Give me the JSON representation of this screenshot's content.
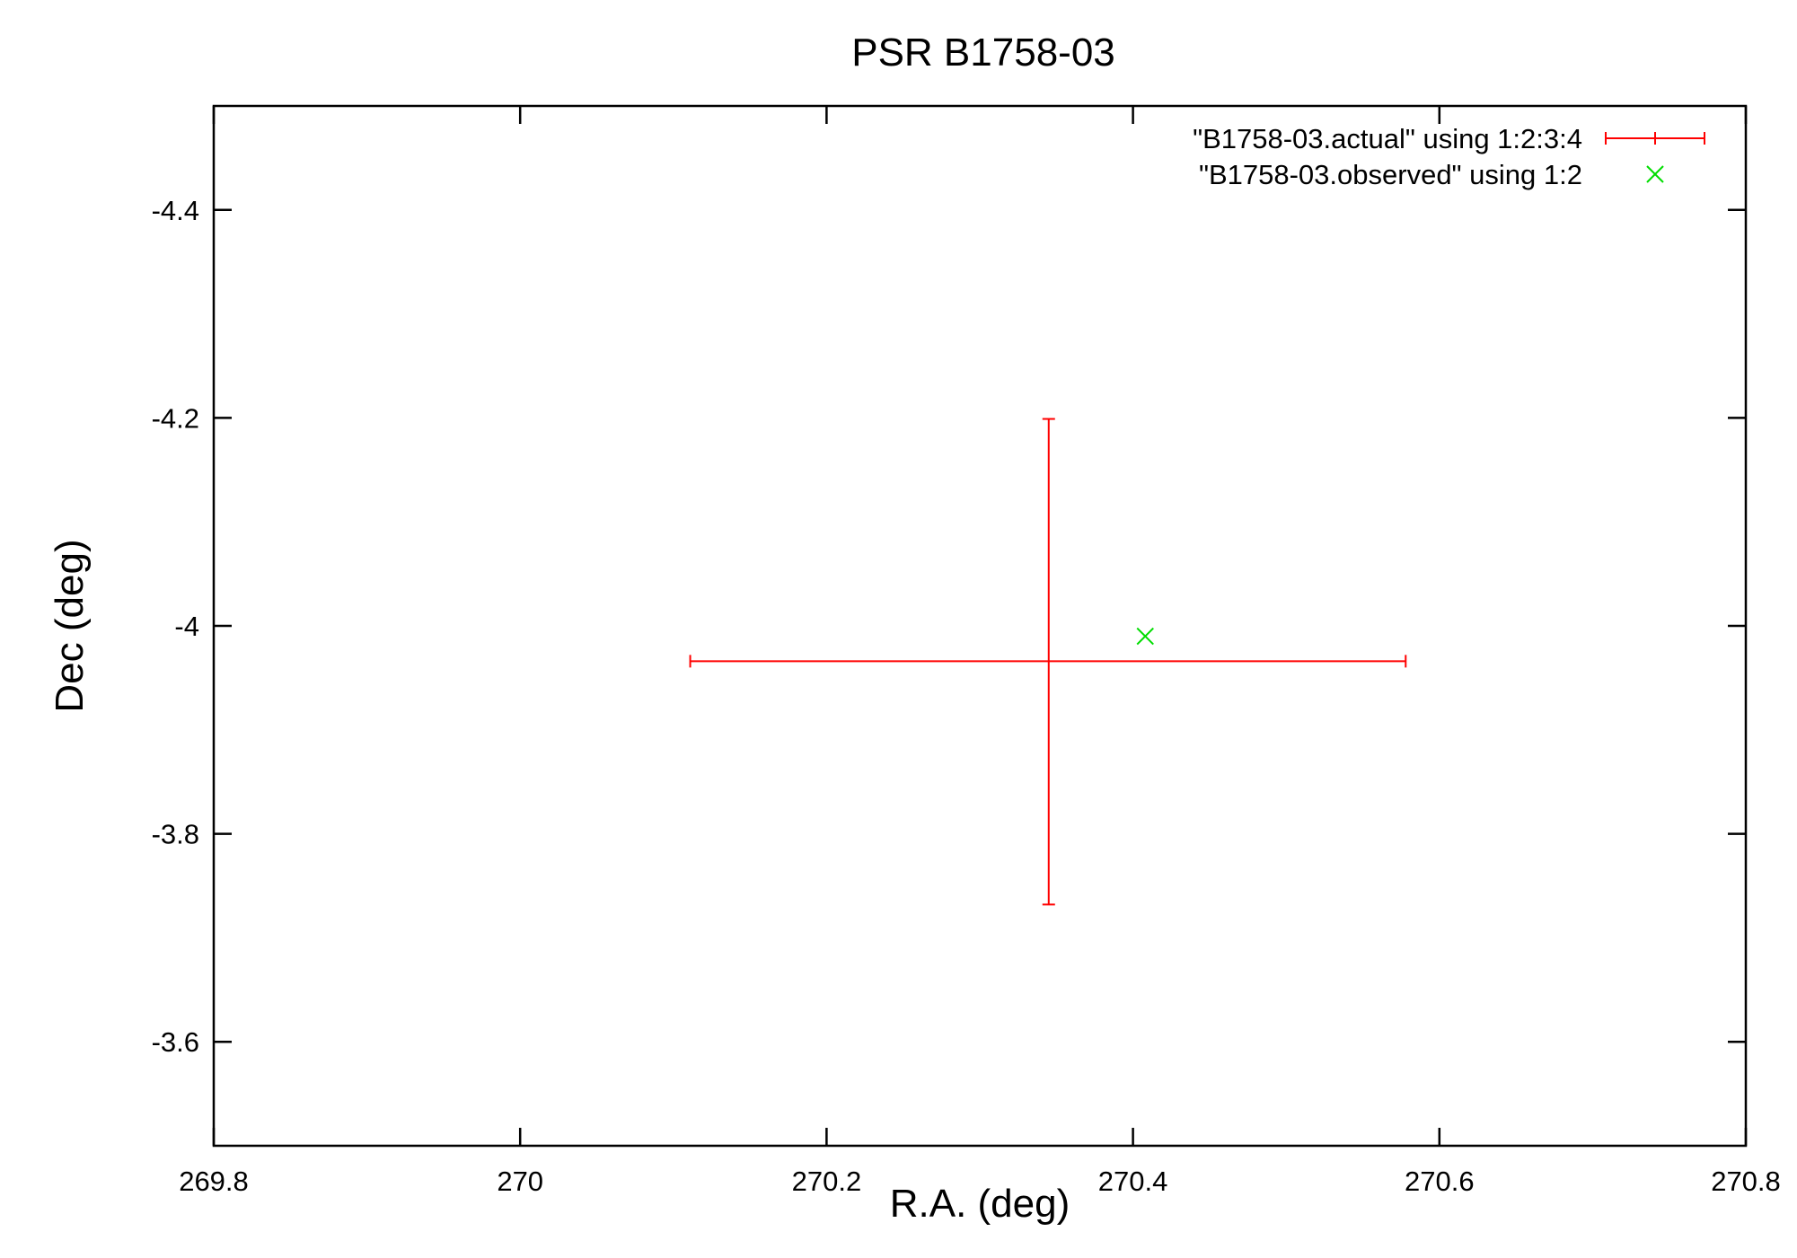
{
  "chart_data": {
    "type": "scatter",
    "title": "PSR B1758-03",
    "xlabel": "R.A. (deg)",
    "ylabel": "Dec (deg)",
    "xlim": [
      269.8,
      270.8
    ],
    "ylim": [
      -4.5,
      -3.5
    ],
    "y_reversed": true,
    "xticks": [
      269.8,
      270.0,
      270.2,
      270.4,
      270.6,
      270.8
    ],
    "xtick_labels": [
      "269.8",
      "270",
      "270.2",
      "270.4",
      "270.6",
      "270.8"
    ],
    "yticks": [
      -4.4,
      -4.2,
      -4.0,
      -3.8,
      -3.6
    ],
    "ytick_labels": [
      "-4.4",
      "-4.2",
      "-4",
      "-3.8",
      "-3.6"
    ],
    "grid": false,
    "legend_position": "top-right",
    "series": [
      {
        "name": "\"B1758-03.actual\" using 1:2:3:4",
        "style": "xyerrorbars",
        "color": "#ff0000",
        "points": [
          {
            "x": 270.345,
            "y": -3.966,
            "xlow": 270.111,
            "xhigh": 270.578,
            "ylow": -4.199,
            "yhigh": -3.732
          }
        ]
      },
      {
        "name": "\"B1758-03.observed\" using 1:2",
        "style": "points",
        "marker": "x",
        "color": "#00dd00",
        "points": [
          {
            "x": 270.408,
            "y": -3.99
          }
        ]
      }
    ]
  }
}
